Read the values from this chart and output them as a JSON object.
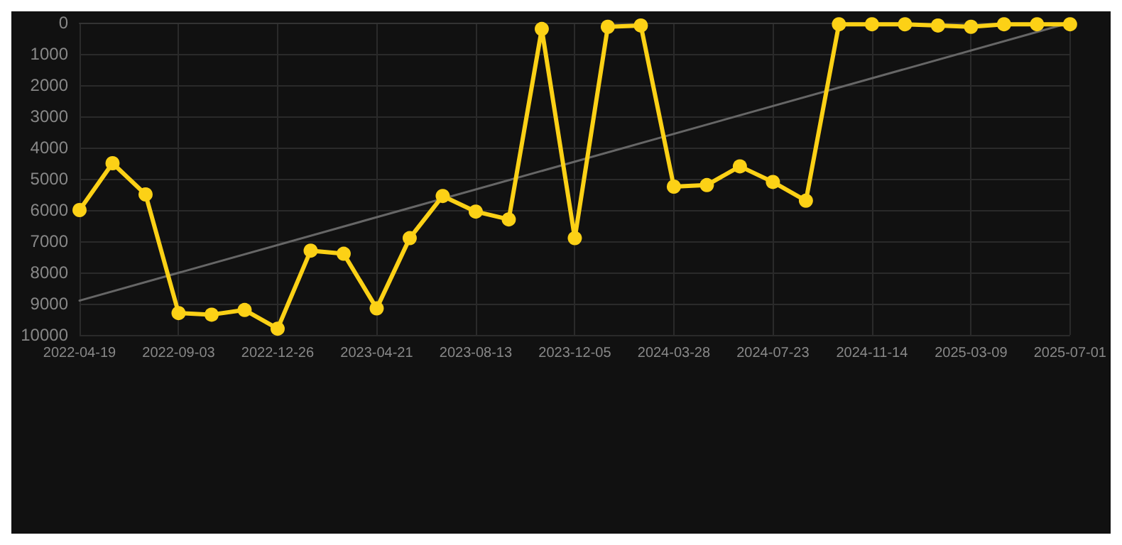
{
  "chart_data": {
    "type": "line",
    "categories": [
      "2022-04-19",
      null,
      null,
      "2022-09-03",
      null,
      null,
      "2022-12-26",
      null,
      null,
      "2023-04-21",
      null,
      null,
      "2023-08-13",
      null,
      null,
      "2023-12-05",
      null,
      null,
      "2024-03-28",
      null,
      null,
      "2024-07-23",
      null,
      null,
      "2024-11-14",
      null,
      null,
      "2025-03-09",
      null,
      null,
      "2025-07-01"
    ],
    "series": [
      {
        "color": "#fcd116",
        "values": [
          6000,
          4500,
          5500,
          9300,
          9350,
          9200,
          9800,
          7300,
          7400,
          9150,
          6900,
          5550,
          6050,
          6300,
          200,
          6900,
          130,
          90,
          5250,
          5200,
          4600,
          5100,
          5700,
          50,
          50,
          50,
          90,
          130,
          50,
          50,
          50
        ]
      },
      {
        "type": "line",
        "color": "#666666",
        "marker": "none",
        "values": [
          8900,
          null,
          null,
          null,
          null,
          null,
          null,
          null,
          null,
          null,
          null,
          null,
          null,
          null,
          null,
          null,
          null,
          null,
          null,
          null,
          null,
          null,
          null,
          null,
          null,
          null,
          null,
          null,
          null,
          null,
          0
        ]
      }
    ],
    "ylim": [
      10000,
      0
    ],
    "yticks": [
      0,
      1000,
      2000,
      3000,
      4000,
      5000,
      6000,
      7000,
      8000,
      9000,
      10000
    ],
    "grid": true,
    "marker": "circle",
    "line_style": "solid"
  }
}
